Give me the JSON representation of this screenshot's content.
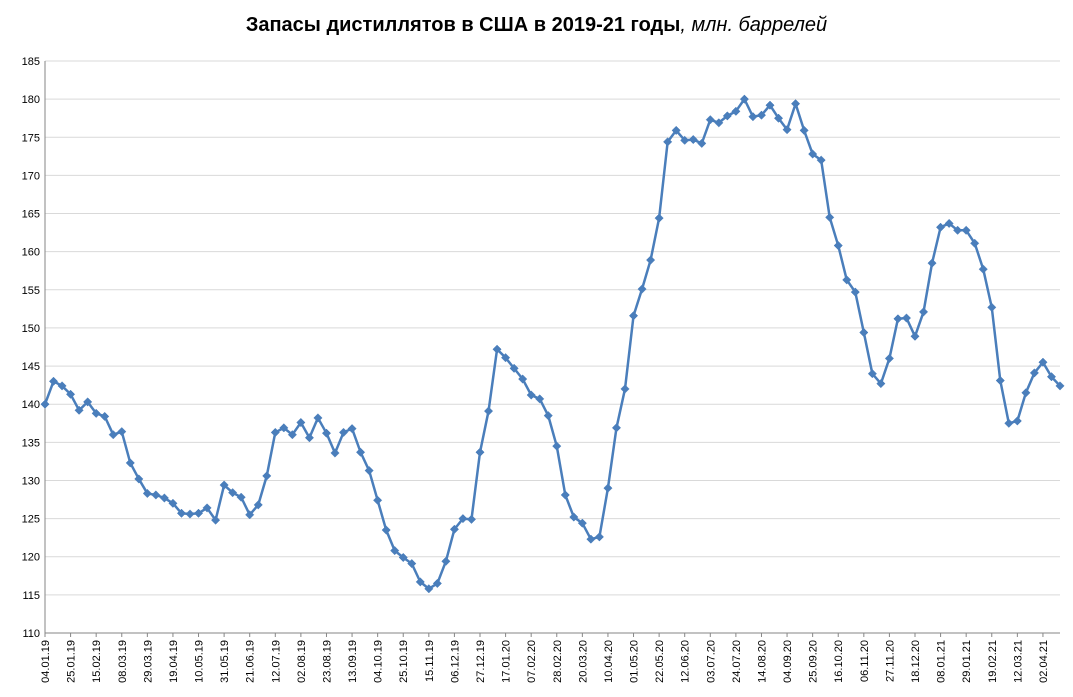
{
  "chart_data": {
    "type": "line",
    "title": "Запасы дистиллятов в США в 2019-21 годы",
    "title_unit": ", млн. баррелей",
    "xlabel": "",
    "ylabel": "",
    "ylim": [
      110,
      185
    ],
    "y_ticks": [
      110,
      115,
      120,
      125,
      130,
      135,
      140,
      145,
      150,
      155,
      160,
      165,
      170,
      175,
      180,
      185
    ],
    "grid": true,
    "legend": "none",
    "color": "#4a7ebb",
    "x_tick_labels": [
      "04.01.19",
      "25.01.19",
      "15.02.19",
      "08.03.19",
      "29.03.19",
      "19.04.19",
      "10.05.19",
      "31.05.19",
      "21.06.19",
      "12.07.19",
      "02.08.19",
      "23.08.19",
      "13.09.19",
      "04.10.19",
      "25.10.19",
      "15.11.19",
      "06.12.19",
      "27.12.19",
      "17.01.20",
      "07.02.20",
      "28.02.20",
      "20.03.20",
      "10.04.20",
      "01.05.20",
      "22.05.20",
      "12.06.20",
      "03.07.20",
      "24.07.20",
      "14.08.20",
      "04.09.20",
      "25.09.20",
      "16.10.20",
      "06.11.20",
      "27.11.20",
      "18.12.20",
      "08.01.21",
      "29.01.21",
      "19.02.21",
      "12.03.21",
      "02.04.21"
    ],
    "series": [
      {
        "values": [
          140.0,
          143.0,
          142.4,
          141.3,
          139.2,
          140.3,
          138.8,
          138.4,
          136.0,
          136.4,
          132.3,
          130.2,
          128.3,
          128.1,
          127.7,
          127.0,
          125.7,
          125.6,
          125.7,
          126.4,
          124.8,
          129.4,
          128.4,
          127.8,
          125.5,
          126.8,
          130.6,
          136.3,
          136.9,
          136.0,
          137.6,
          135.6,
          138.2,
          136.2,
          133.6,
          136.3,
          136.8,
          133.7,
          131.3,
          127.4,
          123.5,
          120.8,
          119.9,
          119.1,
          116.7,
          115.8,
          116.5,
          119.4,
          123.6,
          125.0,
          124.9,
          133.7,
          139.1,
          147.2,
          146.1,
          144.7,
          143.3,
          141.2,
          140.7,
          138.5,
          134.5,
          128.1,
          125.2,
          124.4,
          122.3,
          122.6,
          129.0,
          136.9,
          142.0,
          151.6,
          155.1,
          158.9,
          164.4,
          174.4,
          175.9,
          174.6,
          174.7,
          174.2,
          177.3,
          176.9,
          177.8,
          178.4,
          180.0,
          177.7,
          177.9,
          179.2,
          177.5,
          176.0,
          179.4,
          175.9,
          172.8,
          172.0,
          164.5,
          160.8,
          156.3,
          154.7,
          149.4,
          144.0,
          142.7,
          146.0,
          151.2,
          151.3,
          148.9,
          152.1,
          158.5,
          163.2,
          163.7,
          162.8,
          162.8,
          161.1,
          157.7,
          152.7,
          143.1,
          137.5,
          137.8,
          141.5,
          144.1,
          145.5,
          143.6,
          142.4
        ]
      }
    ]
  }
}
